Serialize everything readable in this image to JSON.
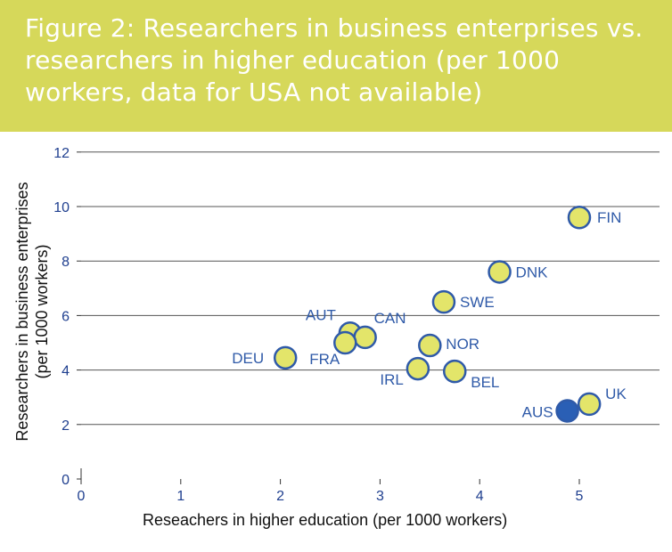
{
  "figure_title": "Figure 2: Researchers in business enterprises vs. researchers in higher education (per 1000 workers, data for USA not available)",
  "chart_data": {
    "type": "scatter",
    "xlabel": "Reseachers in higher education (per 1000 workers)",
    "ylabel_line1": "Researchers in business enterprises",
    "ylabel_line2": "(per 1000 workers)",
    "xlim": [
      0,
      6
    ],
    "ylim": [
      0,
      12
    ],
    "x_ticks": [
      "0",
      "1",
      "2",
      "3",
      "4",
      "5"
    ],
    "y_ticks": [
      "0",
      "2",
      "4",
      "6",
      "8",
      "10",
      "12"
    ],
    "grid": "horizontal",
    "points": [
      {
        "label": "FIN",
        "x": 5.0,
        "y": 9.6,
        "highlight": false
      },
      {
        "label": "DNK",
        "x": 4.2,
        "y": 7.6,
        "highlight": false
      },
      {
        "label": "SWE",
        "x": 3.64,
        "y": 6.5,
        "highlight": false
      },
      {
        "label": "AUT",
        "x": 2.7,
        "y": 5.35,
        "highlight": false
      },
      {
        "label": "CAN",
        "x": 2.85,
        "y": 5.2,
        "highlight": false
      },
      {
        "label": "FRA",
        "x": 2.65,
        "y": 5.0,
        "highlight": false
      },
      {
        "label": "NOR",
        "x": 3.5,
        "y": 4.9,
        "highlight": false
      },
      {
        "label": "DEU",
        "x": 2.05,
        "y": 4.45,
        "highlight": false
      },
      {
        "label": "IRL",
        "x": 3.38,
        "y": 4.05,
        "highlight": false
      },
      {
        "label": "BEL",
        "x": 3.75,
        "y": 3.95,
        "highlight": false
      },
      {
        "label": "UK",
        "x": 5.1,
        "y": 2.75,
        "highlight": false
      },
      {
        "label": "AUS",
        "x": 4.88,
        "y": 2.5,
        "highlight": true
      }
    ],
    "colors": {
      "header": "#d6d85a",
      "marker_fill": "#e3e56a",
      "marker_stroke": "#2f5aa8",
      "highlight_fill": "#2a5fb5",
      "label": "#2f5aa8",
      "axis": "#333333"
    }
  }
}
